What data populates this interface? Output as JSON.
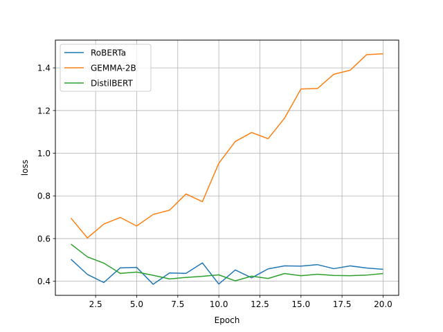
{
  "chart_data": {
    "type": "line",
    "xlabel": "Epoch",
    "ylabel": "loss",
    "xlim": [
      0.05,
      20.95
    ],
    "ylim": [
      0.334,
      1.53
    ],
    "grid": true,
    "legend_position": "top-left",
    "x_ticks": [
      2.5,
      5.0,
      7.5,
      10.0,
      12.5,
      15.0,
      17.5,
      20.0
    ],
    "x_tick_labels": [
      "2.5",
      "5.0",
      "7.5",
      "10.0",
      "12.5",
      "15.0",
      "17.5",
      "20.0"
    ],
    "y_ticks": [
      0.4,
      0.6,
      0.8,
      1.0,
      1.2,
      1.4
    ],
    "y_tick_labels": [
      "0.4",
      "0.6",
      "0.8",
      "1.0",
      "1.2",
      "1.4"
    ],
    "x": [
      1,
      2,
      3,
      4,
      5,
      6,
      7,
      8,
      9,
      10,
      11,
      12,
      13,
      14,
      15,
      16,
      17,
      18,
      19,
      20
    ],
    "series": [
      {
        "name": "RoBERTa",
        "color": "#1f77b4",
        "values": [
          0.503,
          0.432,
          0.394,
          0.463,
          0.465,
          0.386,
          0.439,
          0.437,
          0.486,
          0.387,
          0.453,
          0.416,
          0.458,
          0.472,
          0.471,
          0.478,
          0.459,
          0.472,
          0.462,
          0.456
        ]
      },
      {
        "name": "GEMMA-2B",
        "color": "#ff7f0e",
        "values": [
          0.696,
          0.603,
          0.668,
          0.699,
          0.659,
          0.713,
          0.733,
          0.809,
          0.773,
          0.953,
          1.055,
          1.097,
          1.068,
          1.164,
          1.301,
          1.303,
          1.37,
          1.389,
          1.462,
          1.466
        ]
      },
      {
        "name": "DistilBERT",
        "color": "#2ca02c",
        "values": [
          0.574,
          0.514,
          0.485,
          0.437,
          0.443,
          0.428,
          0.411,
          0.418,
          0.423,
          0.43,
          0.402,
          0.424,
          0.413,
          0.436,
          0.426,
          0.433,
          0.427,
          0.426,
          0.429,
          0.436
        ]
      }
    ]
  }
}
